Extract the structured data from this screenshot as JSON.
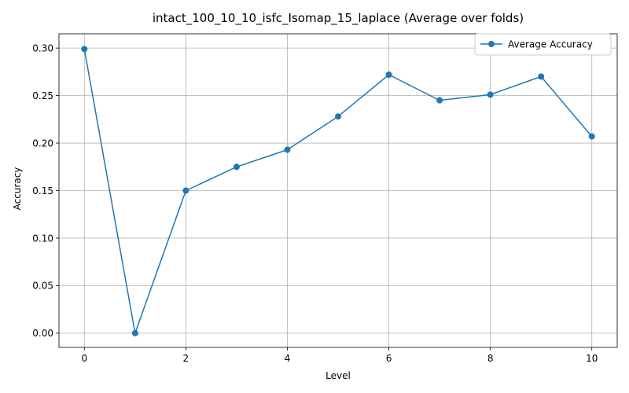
{
  "chart_data": {
    "type": "line",
    "title": "intact_100_10_10_isfc_Isomap_15_laplace (Average over folds)",
    "xlabel": "Level",
    "ylabel": "Accuracy",
    "xlim": [
      -0.5,
      10.5
    ],
    "ylim": [
      -0.015,
      0.315
    ],
    "xticks": [
      0,
      2,
      4,
      6,
      8,
      10
    ],
    "xtick_labels": [
      "0",
      "2",
      "4",
      "6",
      "8",
      "10"
    ],
    "yticks": [
      0.0,
      0.05,
      0.1,
      0.15,
      0.2,
      0.25,
      0.3
    ],
    "ytick_labels": [
      "0.00",
      "0.05",
      "0.10",
      "0.15",
      "0.20",
      "0.25",
      "0.30"
    ],
    "grid": true,
    "legend_position": "top-right",
    "series": [
      {
        "name": "Average Accuracy",
        "color": "#1f77b4",
        "marker": "circle",
        "x": [
          0,
          1,
          2,
          3,
          4,
          5,
          6,
          7,
          8,
          9,
          10
        ],
        "y": [
          0.299,
          0.0,
          0.15,
          0.175,
          0.193,
          0.228,
          0.272,
          0.245,
          0.251,
          0.27,
          0.207
        ]
      }
    ]
  }
}
